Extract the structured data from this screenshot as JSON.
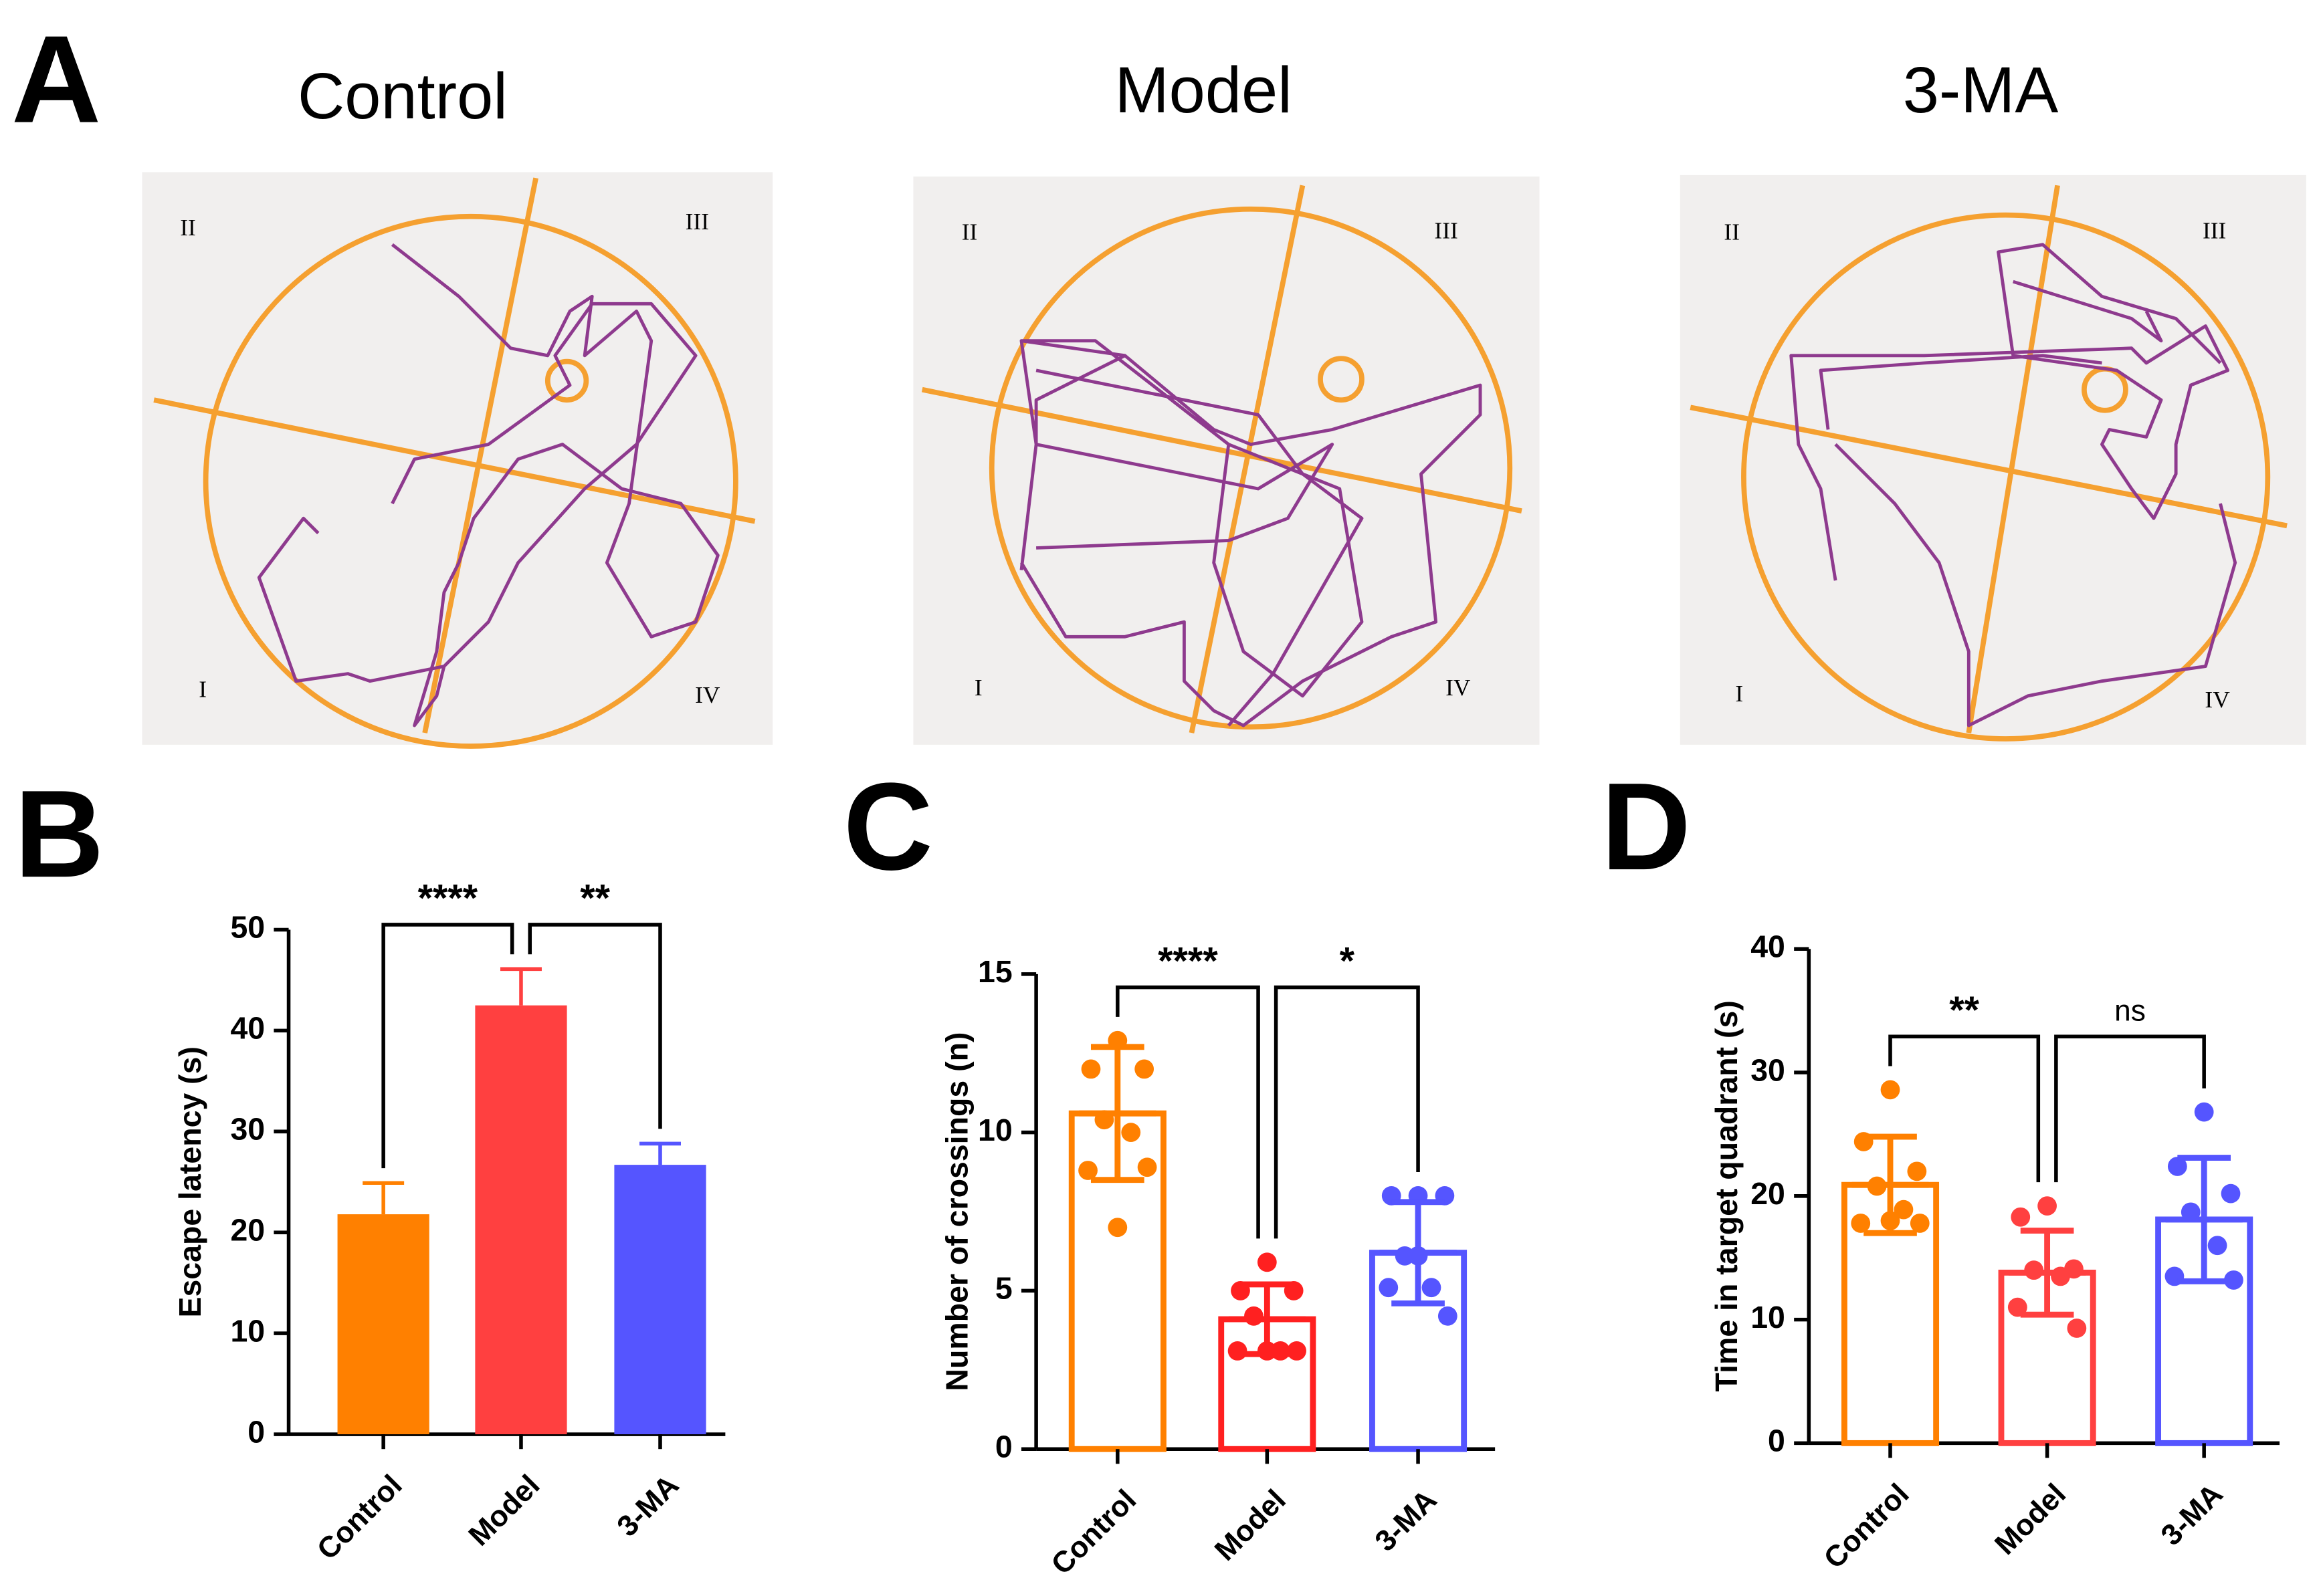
{
  "panel_a": {
    "label": "A",
    "arenas": [
      {
        "title": "Control",
        "quadrants": [
          "II",
          "III",
          "I",
          "IV"
        ]
      },
      {
        "title": "Model",
        "quadrants": [
          "II",
          "III",
          "I",
          "IV"
        ]
      },
      {
        "title": "3-MA",
        "quadrants": [
          "II",
          "III",
          "I",
          "IV"
        ]
      }
    ]
  },
  "chart_data": [
    {
      "type": "bar",
      "panel": "B",
      "ylabel": "Escape latency (s)",
      "categories": [
        "Control",
        "Model",
        "3-MA"
      ],
      "values": [
        21.8,
        42.5,
        26.7
      ],
      "errors": [
        3.1,
        3.6,
        2.1
      ],
      "colors": [
        "#ff8000",
        "#ff4040",
        "#5555ff"
      ],
      "filled": true,
      "ylim": [
        0,
        50
      ],
      "yticks": [
        0,
        10,
        20,
        30,
        40,
        50
      ],
      "annotations": [
        {
          "label": "****",
          "between": [
            "Control",
            "Model"
          ]
        },
        {
          "label": "**",
          "between": [
            "Model",
            "3-MA"
          ]
        }
      ]
    },
    {
      "type": "bar",
      "panel": "C",
      "ylabel": "Number of crossings (n)",
      "categories": [
        "Control",
        "Model",
        "3-MA"
      ],
      "values": [
        10.6,
        4.1,
        6.2
      ],
      "errors": [
        2.1,
        1.1,
        1.6
      ],
      "colors": [
        "#ff8000",
        "#ff2020",
        "#5555ff"
      ],
      "filled": false,
      "points": [
        [
          12.9,
          12,
          12,
          10.4,
          10,
          8.8,
          8.9,
          7
        ],
        [
          5.9,
          5,
          5,
          4.2,
          3.1,
          3.1,
          3.1,
          3.1
        ],
        [
          8,
          8,
          8,
          6.1,
          5.1,
          5.1,
          4.2,
          6.1
        ]
      ],
      "ylim": [
        0,
        15
      ],
      "yticks": [
        0,
        5,
        10,
        15
      ],
      "annotations": [
        {
          "label": "****",
          "between": [
            "Control",
            "Model"
          ]
        },
        {
          "label": "*",
          "between": [
            "Model",
            "3-MA"
          ]
        }
      ]
    },
    {
      "type": "bar",
      "panel": "D",
      "ylabel": "Time in target quadrant (s)",
      "categories": [
        "Control",
        "Model",
        "3-MA"
      ],
      "values": [
        20.9,
        13.8,
        18.1
      ],
      "errors": [
        3.9,
        3.4,
        5.0
      ],
      "colors": [
        "#ff8000",
        "#ff4040",
        "#5555ff"
      ],
      "filled": false,
      "points": [
        [
          28.6,
          24.4,
          22,
          20.8,
          18.9,
          17.8,
          17.8,
          18
        ],
        [
          19.2,
          18.3,
          14.1,
          14,
          13.5,
          11,
          9.3
        ],
        [
          26.8,
          22.4,
          20.2,
          18.7,
          16,
          13.5,
          13.2
        ]
      ],
      "ylim": [
        0,
        40
      ],
      "yticks": [
        0,
        10,
        20,
        30,
        40
      ],
      "annotations": [
        {
          "label": "**",
          "between": [
            "Control",
            "Model"
          ]
        },
        {
          "label": "ns",
          "between": [
            "Model",
            "3-MA"
          ]
        }
      ]
    }
  ]
}
